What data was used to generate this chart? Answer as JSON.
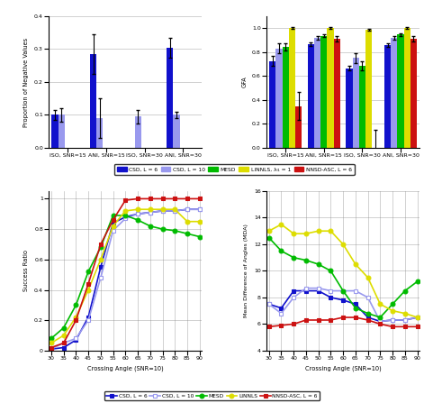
{
  "bar_colors": {
    "CSD_L6": "#1111CC",
    "CSD_L10": "#9999EE",
    "MESD": "#00BB00",
    "LINNLS": "#DDDD00",
    "NNSD_ASC": "#CC1111"
  },
  "neg_values": {
    "ISO_SNR15": [
      0.1,
      0.1,
      0.0,
      0.0,
      0.0
    ],
    "ANI_SNR15": [
      0.285,
      0.09,
      0.0,
      0.0,
      0.0
    ],
    "ISO_SNR30": [
      0.0,
      0.095,
      0.0,
      0.0,
      0.0
    ],
    "ANI_SNR30": [
      0.305,
      0.1,
      0.0,
      0.0,
      0.0
    ]
  },
  "neg_errors": {
    "ISO_SNR15": [
      0.015,
      0.02,
      0.0,
      0.0,
      0.0
    ],
    "ANI_SNR15": [
      0.06,
      0.06,
      0.0,
      0.0,
      0.0
    ],
    "ISO_SNR30": [
      0.0,
      0.02,
      0.0,
      0.0,
      0.0
    ],
    "ANI_SNR30": [
      0.03,
      0.01,
      0.0,
      0.0,
      0.0
    ]
  },
  "gfa_values": {
    "ISO_SNR15": [
      0.725,
      0.83,
      0.84,
      1.0,
      0.35
    ],
    "ANI_SNR15": [
      0.865,
      0.92,
      0.935,
      1.0,
      0.91
    ],
    "ISO_SNR30": [
      0.665,
      0.75,
      0.685,
      0.985,
      0.0
    ],
    "ANI_SNR30": [
      0.86,
      0.915,
      0.945,
      1.0,
      0.91
    ]
  },
  "gfa_errors": {
    "ISO_SNR15": [
      0.04,
      0.04,
      0.03,
      0.01,
      0.12
    ],
    "ANI_SNR15": [
      0.015,
      0.015,
      0.01,
      0.005,
      0.02
    ],
    "ISO_SNR30": [
      0.02,
      0.04,
      0.04,
      0.01,
      0.15
    ],
    "ANI_SNR30": [
      0.015,
      0.015,
      0.01,
      0.005,
      0.02
    ]
  },
  "crossing_angles": [
    30,
    35,
    40,
    45,
    50,
    55,
    60,
    65,
    70,
    75,
    80,
    85,
    90
  ],
  "success_ratio": {
    "CSD_L6": [
      0.01,
      0.02,
      0.07,
      0.22,
      0.55,
      0.84,
      0.88,
      0.9,
      0.91,
      0.92,
      0.92,
      0.93,
      0.93
    ],
    "CSD_L10": [
      0.01,
      0.05,
      0.08,
      0.2,
      0.48,
      0.79,
      0.87,
      0.9,
      0.91,
      0.92,
      0.92,
      0.93,
      0.93
    ],
    "MESD": [
      0.08,
      0.15,
      0.3,
      0.52,
      0.68,
      0.89,
      0.89,
      0.86,
      0.82,
      0.8,
      0.79,
      0.77,
      0.75
    ],
    "LINNLS": [
      0.05,
      0.1,
      0.22,
      0.4,
      0.6,
      0.82,
      0.92,
      0.93,
      0.93,
      0.93,
      0.93,
      0.85,
      0.85
    ],
    "NNSD_ASC": [
      0.02,
      0.05,
      0.2,
      0.44,
      0.7,
      0.86,
      0.99,
      1.0,
      1.0,
      1.0,
      1.0,
      1.0,
      1.0
    ]
  },
  "mean_diff_angles": {
    "CSD_L6": [
      7.5,
      7.2,
      8.5,
      8.5,
      8.5,
      8.0,
      7.8,
      7.5,
      6.5,
      6.2,
      6.3,
      6.3,
      6.5
    ],
    "CSD_L10": [
      7.5,
      6.8,
      8.0,
      8.7,
      8.7,
      8.5,
      8.5,
      8.5,
      8.0,
      6.2,
      6.3,
      6.3,
      6.5
    ],
    "MESD": [
      12.5,
      11.5,
      11.0,
      10.8,
      10.5,
      10.0,
      8.5,
      7.2,
      6.8,
      6.5,
      7.5,
      8.5,
      9.2
    ],
    "LINNLS": [
      13.0,
      13.5,
      12.8,
      12.8,
      13.0,
      13.0,
      12.0,
      10.5,
      9.5,
      7.5,
      7.0,
      6.8,
      6.5
    ],
    "NNSD_ASC": [
      5.8,
      5.9,
      6.0,
      6.3,
      6.3,
      6.3,
      6.5,
      6.5,
      6.3,
      6.0,
      5.8,
      5.8,
      5.8
    ]
  },
  "legend_labels_bar": [
    "CSD, L = 6",
    "CSD, L = 10",
    "MESD",
    "LINNLS, λₗ₁ = 1",
    "NNSD-ASC, L = 6"
  ],
  "legend_colors_bar": [
    "#1111CC",
    "#9999EE",
    "#00BB00",
    "#DDDD00",
    "#CC1111"
  ],
  "xticklabels_bar": [
    "ISO, SNR=15",
    "ANI, SNR=15",
    "ISO, SNR=30",
    "ANI, SNR=30"
  ],
  "ylabel_neg": "Proportion of Negative Values",
  "ylabel_gfa": "GFA",
  "ylabel_success": "Success Ratio",
  "ylabel_mda": "Mean Difference of Angles (MDA)",
  "xlabel_bottom": "Crossing Angle (SNR=10)",
  "line_legend_labels": [
    "CSD, L = 6",
    "CSD, L = 10",
    "MESD",
    "LINNLS",
    "NNSD-ASC, L = 6"
  ]
}
